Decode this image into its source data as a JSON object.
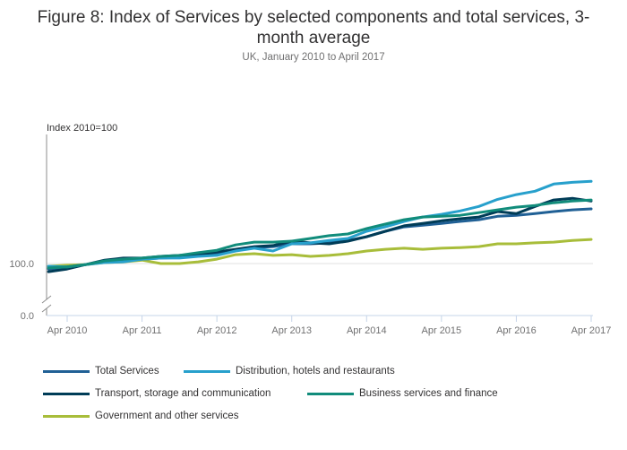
{
  "chart_data": {
    "type": "line",
    "title": "Figure 8: Index of Services by selected components and total services, 3-month average",
    "title_lines": [
      "Figure 8: Index of Services by selected components and total services, 3-",
      "month average"
    ],
    "subtitle": "UK, January 2010 to April 2017",
    "ylabel": "Index 2010=100",
    "xlabel": "",
    "y_axis_break": true,
    "ylim": [
      0,
      138
    ],
    "yticks": [
      {
        "value": 0,
        "label": "0.0"
      },
      {
        "value": 100,
        "label": "100.0"
      }
    ],
    "xticks": [
      "Apr 2010",
      "Apr 2011",
      "Apr 2012",
      "Apr 2013",
      "Apr 2014",
      "Apr 2015",
      "Apr 2016",
      "Apr 2017"
    ],
    "grid": "horizontal at 100.0",
    "legend_position": "bottom",
    "x": [
      "Jan 2010",
      "Apr 2010",
      "Jul 2010",
      "Oct 2010",
      "Jan 2011",
      "Apr 2011",
      "Jul 2011",
      "Oct 2011",
      "Jan 2012",
      "Apr 2012",
      "Jul 2012",
      "Oct 2012",
      "Jan 2013",
      "Apr 2013",
      "Jul 2013",
      "Oct 2013",
      "Jan 2014",
      "Apr 2014",
      "Jul 2014",
      "Oct 2014",
      "Jan 2015",
      "Apr 2015",
      "Jul 2015",
      "Oct 2015",
      "Jan 2016",
      "Apr 2016",
      "Jul 2016",
      "Oct 2016",
      "Jan 2017",
      "Apr 2017"
    ],
    "series": [
      {
        "name": "Total Services",
        "color": "#206095",
        "values": [
          98.4,
          99.0,
          99.7,
          100.5,
          101.0,
          101.3,
          101.6,
          101.8,
          102.4,
          102.9,
          103.9,
          104.7,
          105.0,
          105.8,
          105.8,
          106.1,
          106.8,
          107.9,
          109.5,
          110.8,
          111.3,
          111.8,
          112.4,
          112.9,
          113.9,
          114.2,
          114.7,
          115.3,
          115.8,
          116.1
        ]
      },
      {
        "name": "Distribution, hotels and restaurants",
        "color": "#27a0cc",
        "values": [
          99.2,
          99.0,
          99.7,
          100.3,
          100.5,
          101.3,
          101.6,
          101.6,
          102.1,
          102.4,
          103.7,
          104.5,
          103.7,
          105.8,
          106.1,
          106.8,
          107.4,
          109.5,
          110.8,
          112.4,
          113.7,
          114.5,
          115.5,
          116.8,
          118.9,
          120.3,
          121.3,
          123.4,
          123.9,
          124.2
        ]
      },
      {
        "name": "Transport, storage and communication",
        "color": "#003c57",
        "values": [
          97.6,
          98.4,
          99.7,
          101.0,
          101.6,
          101.6,
          102.1,
          102.4,
          102.6,
          103.4,
          104.2,
          105.0,
          105.3,
          106.6,
          106.1,
          105.8,
          106.6,
          107.9,
          109.5,
          111.1,
          111.8,
          112.6,
          113.2,
          113.7,
          115.3,
          114.7,
          116.8,
          118.7,
          119.2,
          118.4
        ]
      },
      {
        "name": "Business services and finance",
        "color": "#118c7b",
        "values": [
          98.7,
          99.0,
          99.7,
          100.8,
          101.3,
          101.6,
          102.1,
          102.4,
          103.2,
          103.9,
          105.5,
          106.3,
          106.3,
          106.6,
          107.4,
          108.2,
          108.7,
          110.3,
          111.6,
          112.9,
          113.7,
          113.9,
          114.2,
          115.0,
          115.8,
          116.6,
          117.1,
          117.9,
          118.4,
          118.7
        ]
      },
      {
        "name": "Government and other services",
        "color": "#a8bd3a",
        "values": [
          99.2,
          99.5,
          99.7,
          100.3,
          100.5,
          101.0,
          100.0,
          100.0,
          100.5,
          101.3,
          102.6,
          102.9,
          102.4,
          102.6,
          102.1,
          102.4,
          102.9,
          103.7,
          104.2,
          104.5,
          104.2,
          104.5,
          104.7,
          105.0,
          105.8,
          105.8,
          106.1,
          106.3,
          106.8,
          107.1
        ]
      }
    ]
  },
  "legend": {
    "items": [
      {
        "label": "Total Services",
        "color": "#206095"
      },
      {
        "label": "Distribution, hotels and restaurants",
        "color": "#27a0cc"
      },
      {
        "label": "Transport, storage and communication",
        "color": "#003c57"
      },
      {
        "label": "Business services and finance",
        "color": "#118c7b"
      },
      {
        "label": "Government and other services",
        "color": "#a8bd3a"
      }
    ]
  }
}
